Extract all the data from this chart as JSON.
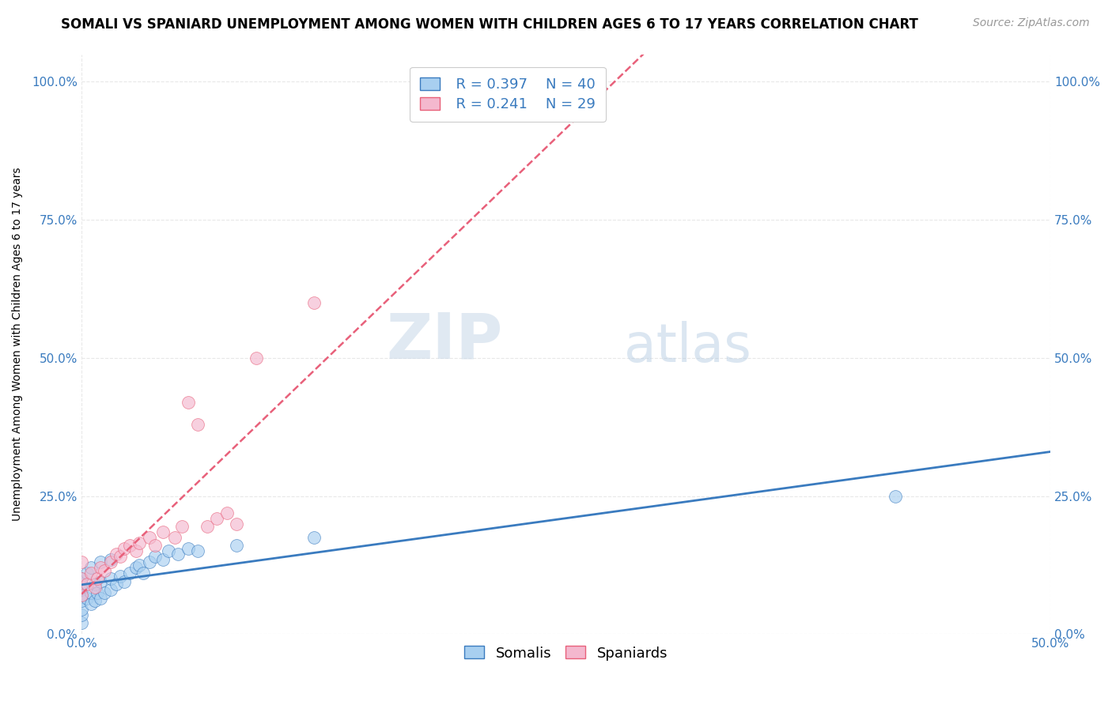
{
  "title": "SOMALI VS SPANIARD UNEMPLOYMENT AMONG WOMEN WITH CHILDREN AGES 6 TO 17 YEARS CORRELATION CHART",
  "source": "Source: ZipAtlas.com",
  "ylabel": "Unemployment Among Women with Children Ages 6 to 17 years",
  "xlim": [
    0.0,
    0.5
  ],
  "ylim": [
    0.0,
    1.05
  ],
  "somali_color": "#a8cff0",
  "spaniard_color": "#f4b8ce",
  "somali_line_color": "#3a7bbf",
  "spaniard_line_color": "#e8607a",
  "legend_R_somali": "R = 0.397",
  "legend_N_somali": "N = 40",
  "legend_R_spaniard": "R = 0.241",
  "legend_N_spaniard": "N = 29",
  "watermark_zip": "ZIP",
  "watermark_atlas": "atlas",
  "somali_x": [
    0.0,
    0.0,
    0.0,
    0.0,
    0.0,
    0.0,
    0.0,
    0.0,
    0.003,
    0.003,
    0.005,
    0.005,
    0.005,
    0.007,
    0.007,
    0.008,
    0.01,
    0.01,
    0.01,
    0.012,
    0.015,
    0.015,
    0.015,
    0.018,
    0.02,
    0.022,
    0.025,
    0.028,
    0.03,
    0.032,
    0.035,
    0.038,
    0.042,
    0.045,
    0.05,
    0.055,
    0.06,
    0.08,
    0.12,
    0.42
  ],
  "somali_y": [
    0.02,
    0.035,
    0.045,
    0.06,
    0.07,
    0.08,
    0.09,
    0.1,
    0.065,
    0.11,
    0.055,
    0.075,
    0.12,
    0.06,
    0.09,
    0.075,
    0.065,
    0.095,
    0.13,
    0.075,
    0.08,
    0.1,
    0.135,
    0.09,
    0.105,
    0.095,
    0.11,
    0.12,
    0.125,
    0.11,
    0.13,
    0.14,
    0.135,
    0.15,
    0.145,
    0.155,
    0.15,
    0.16,
    0.175,
    0.25
  ],
  "spaniard_x": [
    0.0,
    0.0,
    0.0,
    0.003,
    0.005,
    0.007,
    0.008,
    0.01,
    0.012,
    0.015,
    0.018,
    0.02,
    0.022,
    0.025,
    0.028,
    0.03,
    0.035,
    0.038,
    0.042,
    0.048,
    0.052,
    0.055,
    0.06,
    0.065,
    0.07,
    0.075,
    0.08,
    0.09,
    0.12
  ],
  "spaniard_y": [
    0.07,
    0.1,
    0.13,
    0.09,
    0.11,
    0.085,
    0.1,
    0.12,
    0.115,
    0.13,
    0.145,
    0.14,
    0.155,
    0.16,
    0.15,
    0.165,
    0.175,
    0.16,
    0.185,
    0.175,
    0.195,
    0.42,
    0.38,
    0.195,
    0.21,
    0.22,
    0.2,
    0.5,
    0.6
  ],
  "background_color": "#ffffff",
  "grid_color": "#e8e8e8",
  "grid_style": "--",
  "title_fontsize": 12,
  "source_fontsize": 10,
  "axis_label_fontsize": 10,
  "tick_fontsize": 11,
  "legend_fontsize": 13,
  "marker_size": 130,
  "marker_alpha": 0.65
}
